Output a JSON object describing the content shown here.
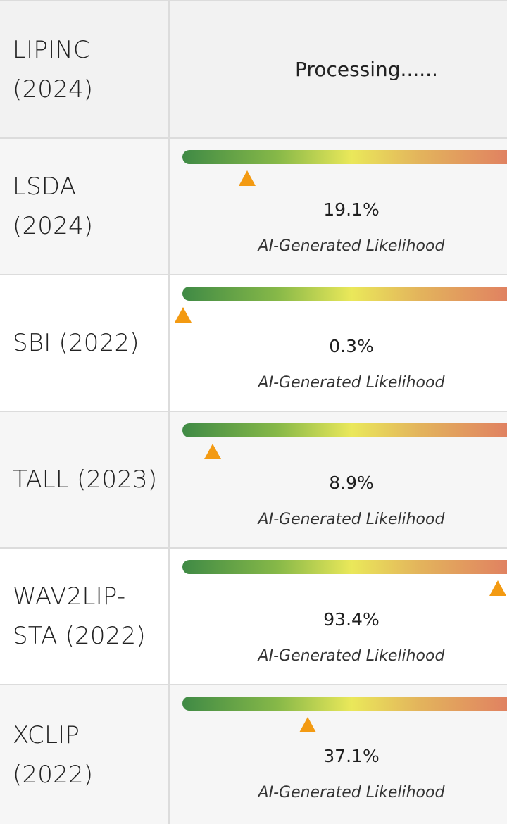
{
  "header_row": {
    "model": "LIPINC (2024)",
    "status": "Processing......"
  },
  "colors": {
    "marker": "#f39a12",
    "gradient": [
      "#3f8a45",
      "#86b848",
      "#eae85a",
      "#e3b45c",
      "#e07a62"
    ]
  },
  "rows": [
    {
      "model": "LSDA (2024)",
      "percent_text": "19.1%",
      "likelihood": 0.191,
      "caption": "AI-Generated Likelihood"
    },
    {
      "model": "SBI (2022)",
      "percent_text": "0.3%",
      "likelihood": 0.003,
      "caption": "AI-Generated Likelihood"
    },
    {
      "model": "TALL (2023)",
      "percent_text": "8.9%",
      "likelihood": 0.089,
      "caption": "AI-Generated Likelihood"
    },
    {
      "model": "WAV2LIP-STA (2022)",
      "percent_text": "93.4%",
      "likelihood": 0.934,
      "caption": "AI-Generated Likelihood"
    },
    {
      "model": "XCLIP (2022)",
      "percent_text": "37.1%",
      "likelihood": 0.371,
      "caption": "AI-Generated Likelihood"
    }
  ]
}
